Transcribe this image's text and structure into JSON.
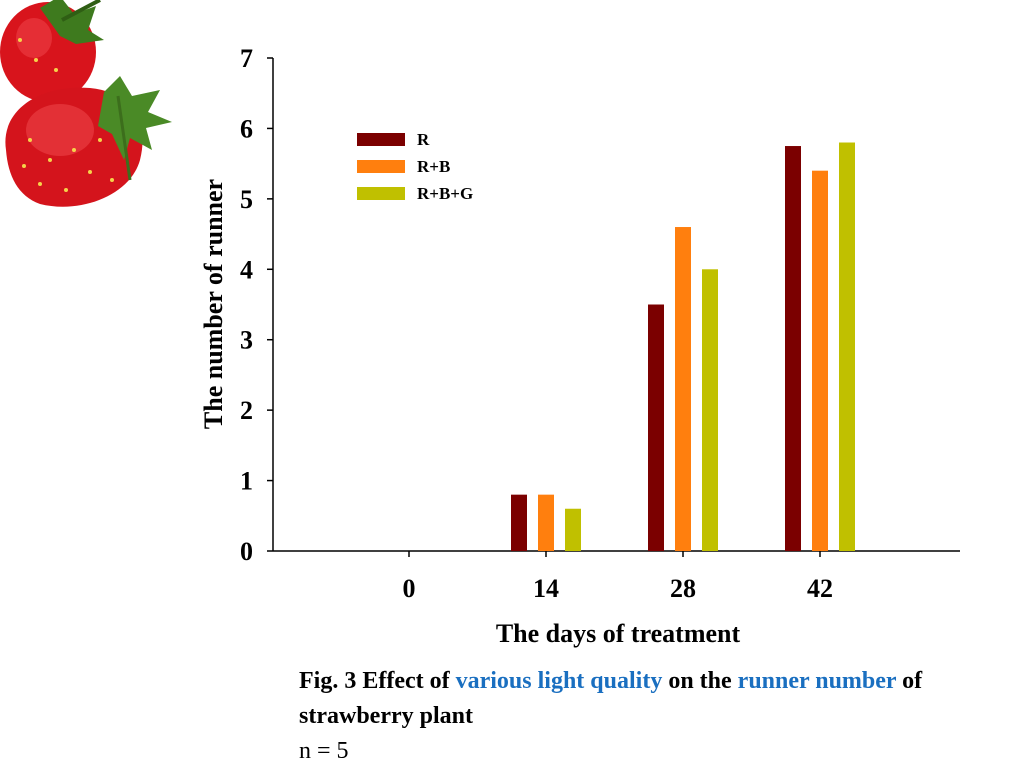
{
  "chart_data": {
    "type": "bar",
    "categories": [
      "0",
      "14",
      "28",
      "42"
    ],
    "series": [
      {
        "name": "R",
        "color": "#7b0000",
        "values": [
          0,
          0.8,
          3.5,
          5.75
        ]
      },
      {
        "name": "R+B",
        "color": "#ff7f0e",
        "values": [
          0,
          0.8,
          4.6,
          5.4
        ]
      },
      {
        "name": "R+B+G",
        "color": "#c0c000",
        "values": [
          0,
          0.6,
          4.0,
          5.8
        ]
      }
    ],
    "xlabel": "The days of treatment",
    "ylabel": "The number of runner",
    "ylim": [
      0,
      7
    ],
    "yticks": [
      "0",
      "1",
      "2",
      "3",
      "4",
      "5",
      "6",
      "7"
    ],
    "legend": "top-left",
    "grid": false
  },
  "caption": {
    "part1": "Fig. 3 Effect of ",
    "highlight1": "various light quality",
    "part2": " on the ",
    "highlight2": "runner number",
    "part3": " of strawberry plant",
    "note": "n = 5"
  },
  "decoration": {
    "icon": "strawberry-icon"
  }
}
